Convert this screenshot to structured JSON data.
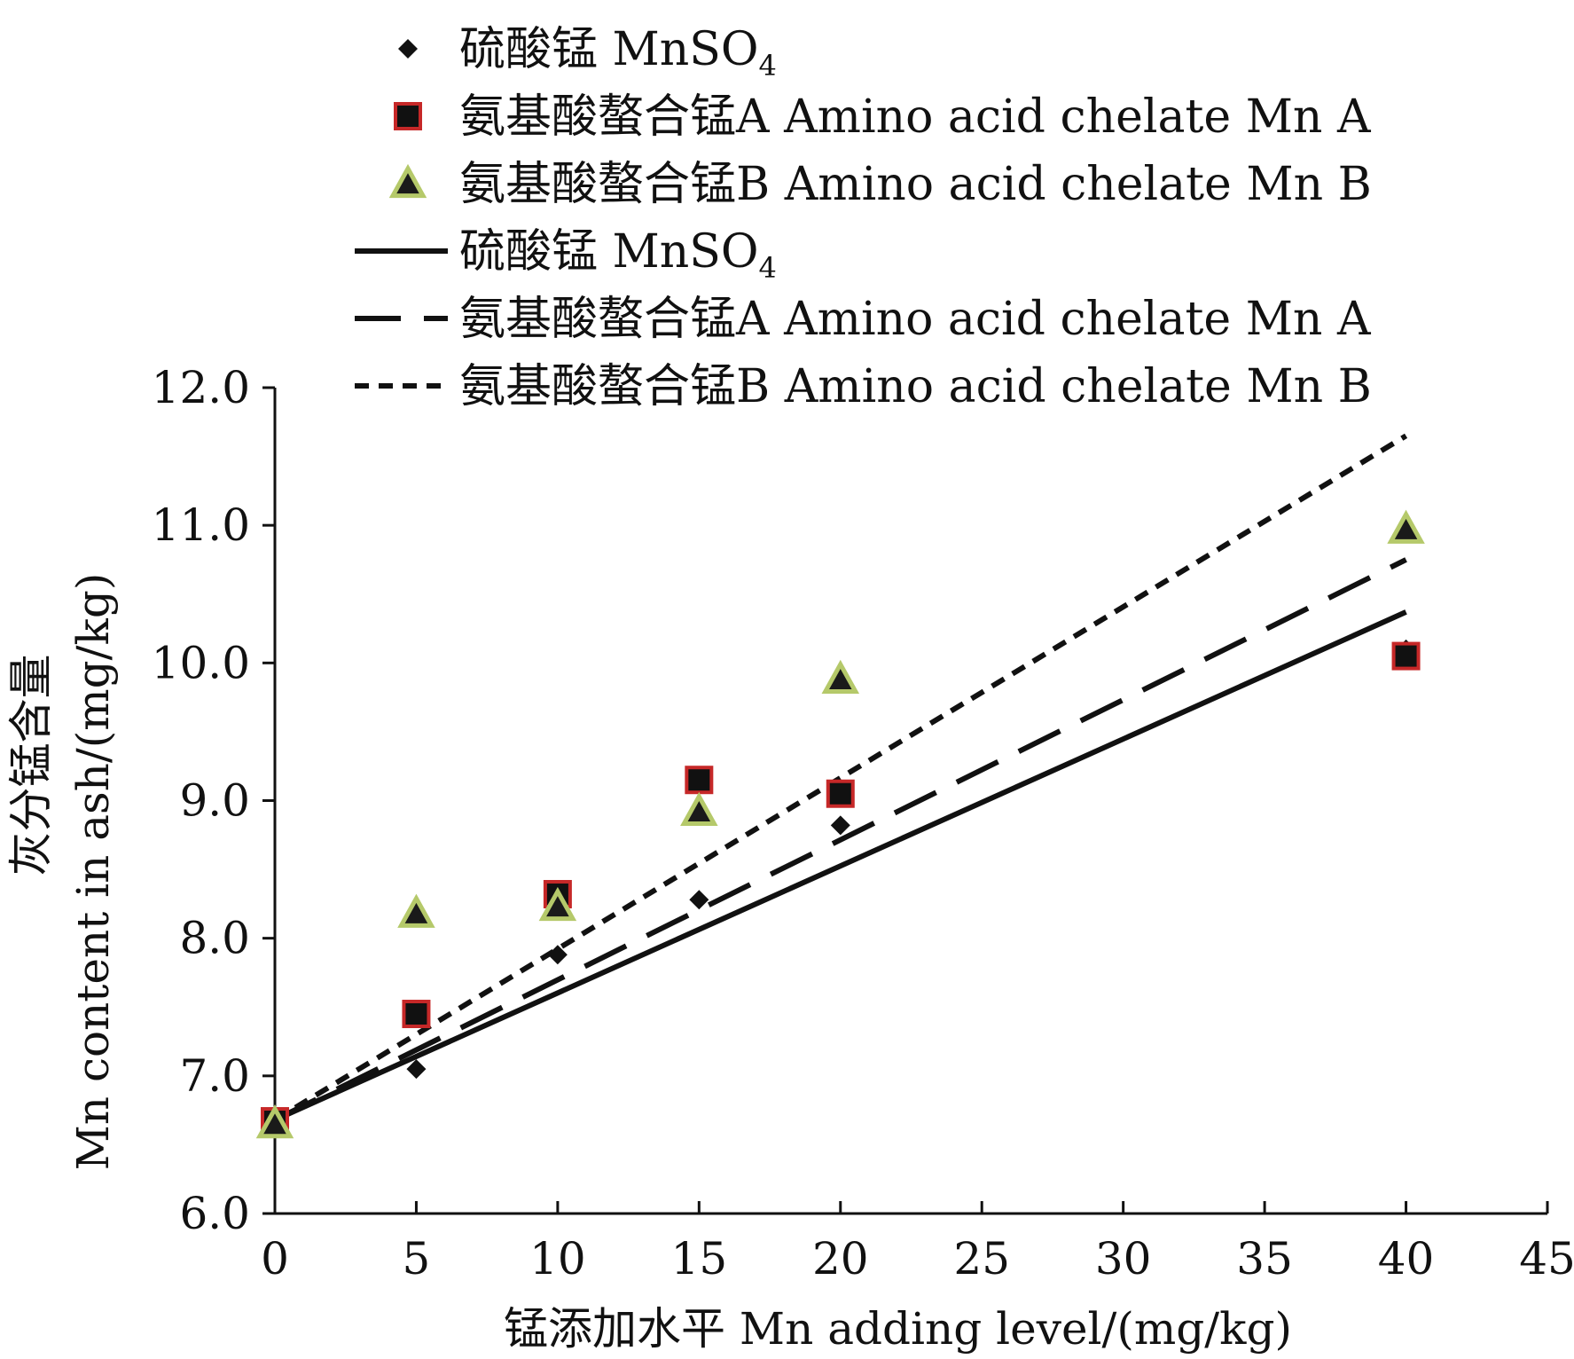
{
  "chart_data": {
    "type": "scatter",
    "xlabel": "锰添加水平  Mn adding level/(mg/kg)",
    "ylabel_cn": "灰分锰含量",
    "ylabel_en": "Mn content in ash/(mg/kg)",
    "xlim": [
      0,
      45
    ],
    "ylim": [
      6.0,
      12.0
    ],
    "xticks": [
      "0",
      "5",
      "10",
      "15",
      "20",
      "25",
      "30",
      "35",
      "40",
      "45"
    ],
    "yticks": [
      "6.0",
      "7.0",
      "8.0",
      "9.0",
      "10.0",
      "11.0",
      "12.0"
    ],
    "grid": false,
    "legend_position": "top",
    "series": [
      {
        "name": "硫酸锰  MnSO4",
        "name_main": "硫酸锰  MnSO",
        "name_sub": "4",
        "kind": "points",
        "marker": "diamond",
        "color": "#111111",
        "x": [
          0,
          5,
          10,
          15,
          20,
          40
        ],
        "y": [
          6.65,
          7.05,
          7.88,
          8.28,
          8.82,
          10.1
        ]
      },
      {
        "name": "氨基酸螯合锰A Amino acid chelate Mn A",
        "kind": "points",
        "marker": "square",
        "color": "#111111",
        "edge": "#c62828",
        "x": [
          0,
          5,
          10,
          15,
          20,
          40
        ],
        "y": [
          6.67,
          7.45,
          8.32,
          9.15,
          9.05,
          10.05
        ]
      },
      {
        "name": "氨基酸螯合锰B Amino acid chelate Mn B",
        "kind": "points",
        "marker": "triangle",
        "color": "#1a1a1a",
        "edge": "#b5c96a",
        "x": [
          0,
          5,
          10,
          15,
          20,
          40
        ],
        "y": [
          6.65,
          8.18,
          8.23,
          8.92,
          9.88,
          10.97
        ]
      },
      {
        "name": "硫酸锰  MnSO4",
        "name_main": "硫酸锰  MnSO",
        "name_sub": "4",
        "kind": "line",
        "dash": "solid",
        "color": "#111111",
        "x": [
          0,
          40
        ],
        "y": [
          6.68,
          10.37
        ]
      },
      {
        "name": "氨基酸螯合锰A Amino acid chelate Mn A",
        "kind": "line",
        "dash": "longdash",
        "color": "#111111",
        "x": [
          0,
          40
        ],
        "y": [
          6.68,
          10.75
        ]
      },
      {
        "name": "氨基酸螯合锰B Amino acid chelate Mn B",
        "kind": "line",
        "dash": "shortdash",
        "color": "#111111",
        "x": [
          0,
          40
        ],
        "y": [
          6.68,
          11.65
        ]
      }
    ]
  }
}
